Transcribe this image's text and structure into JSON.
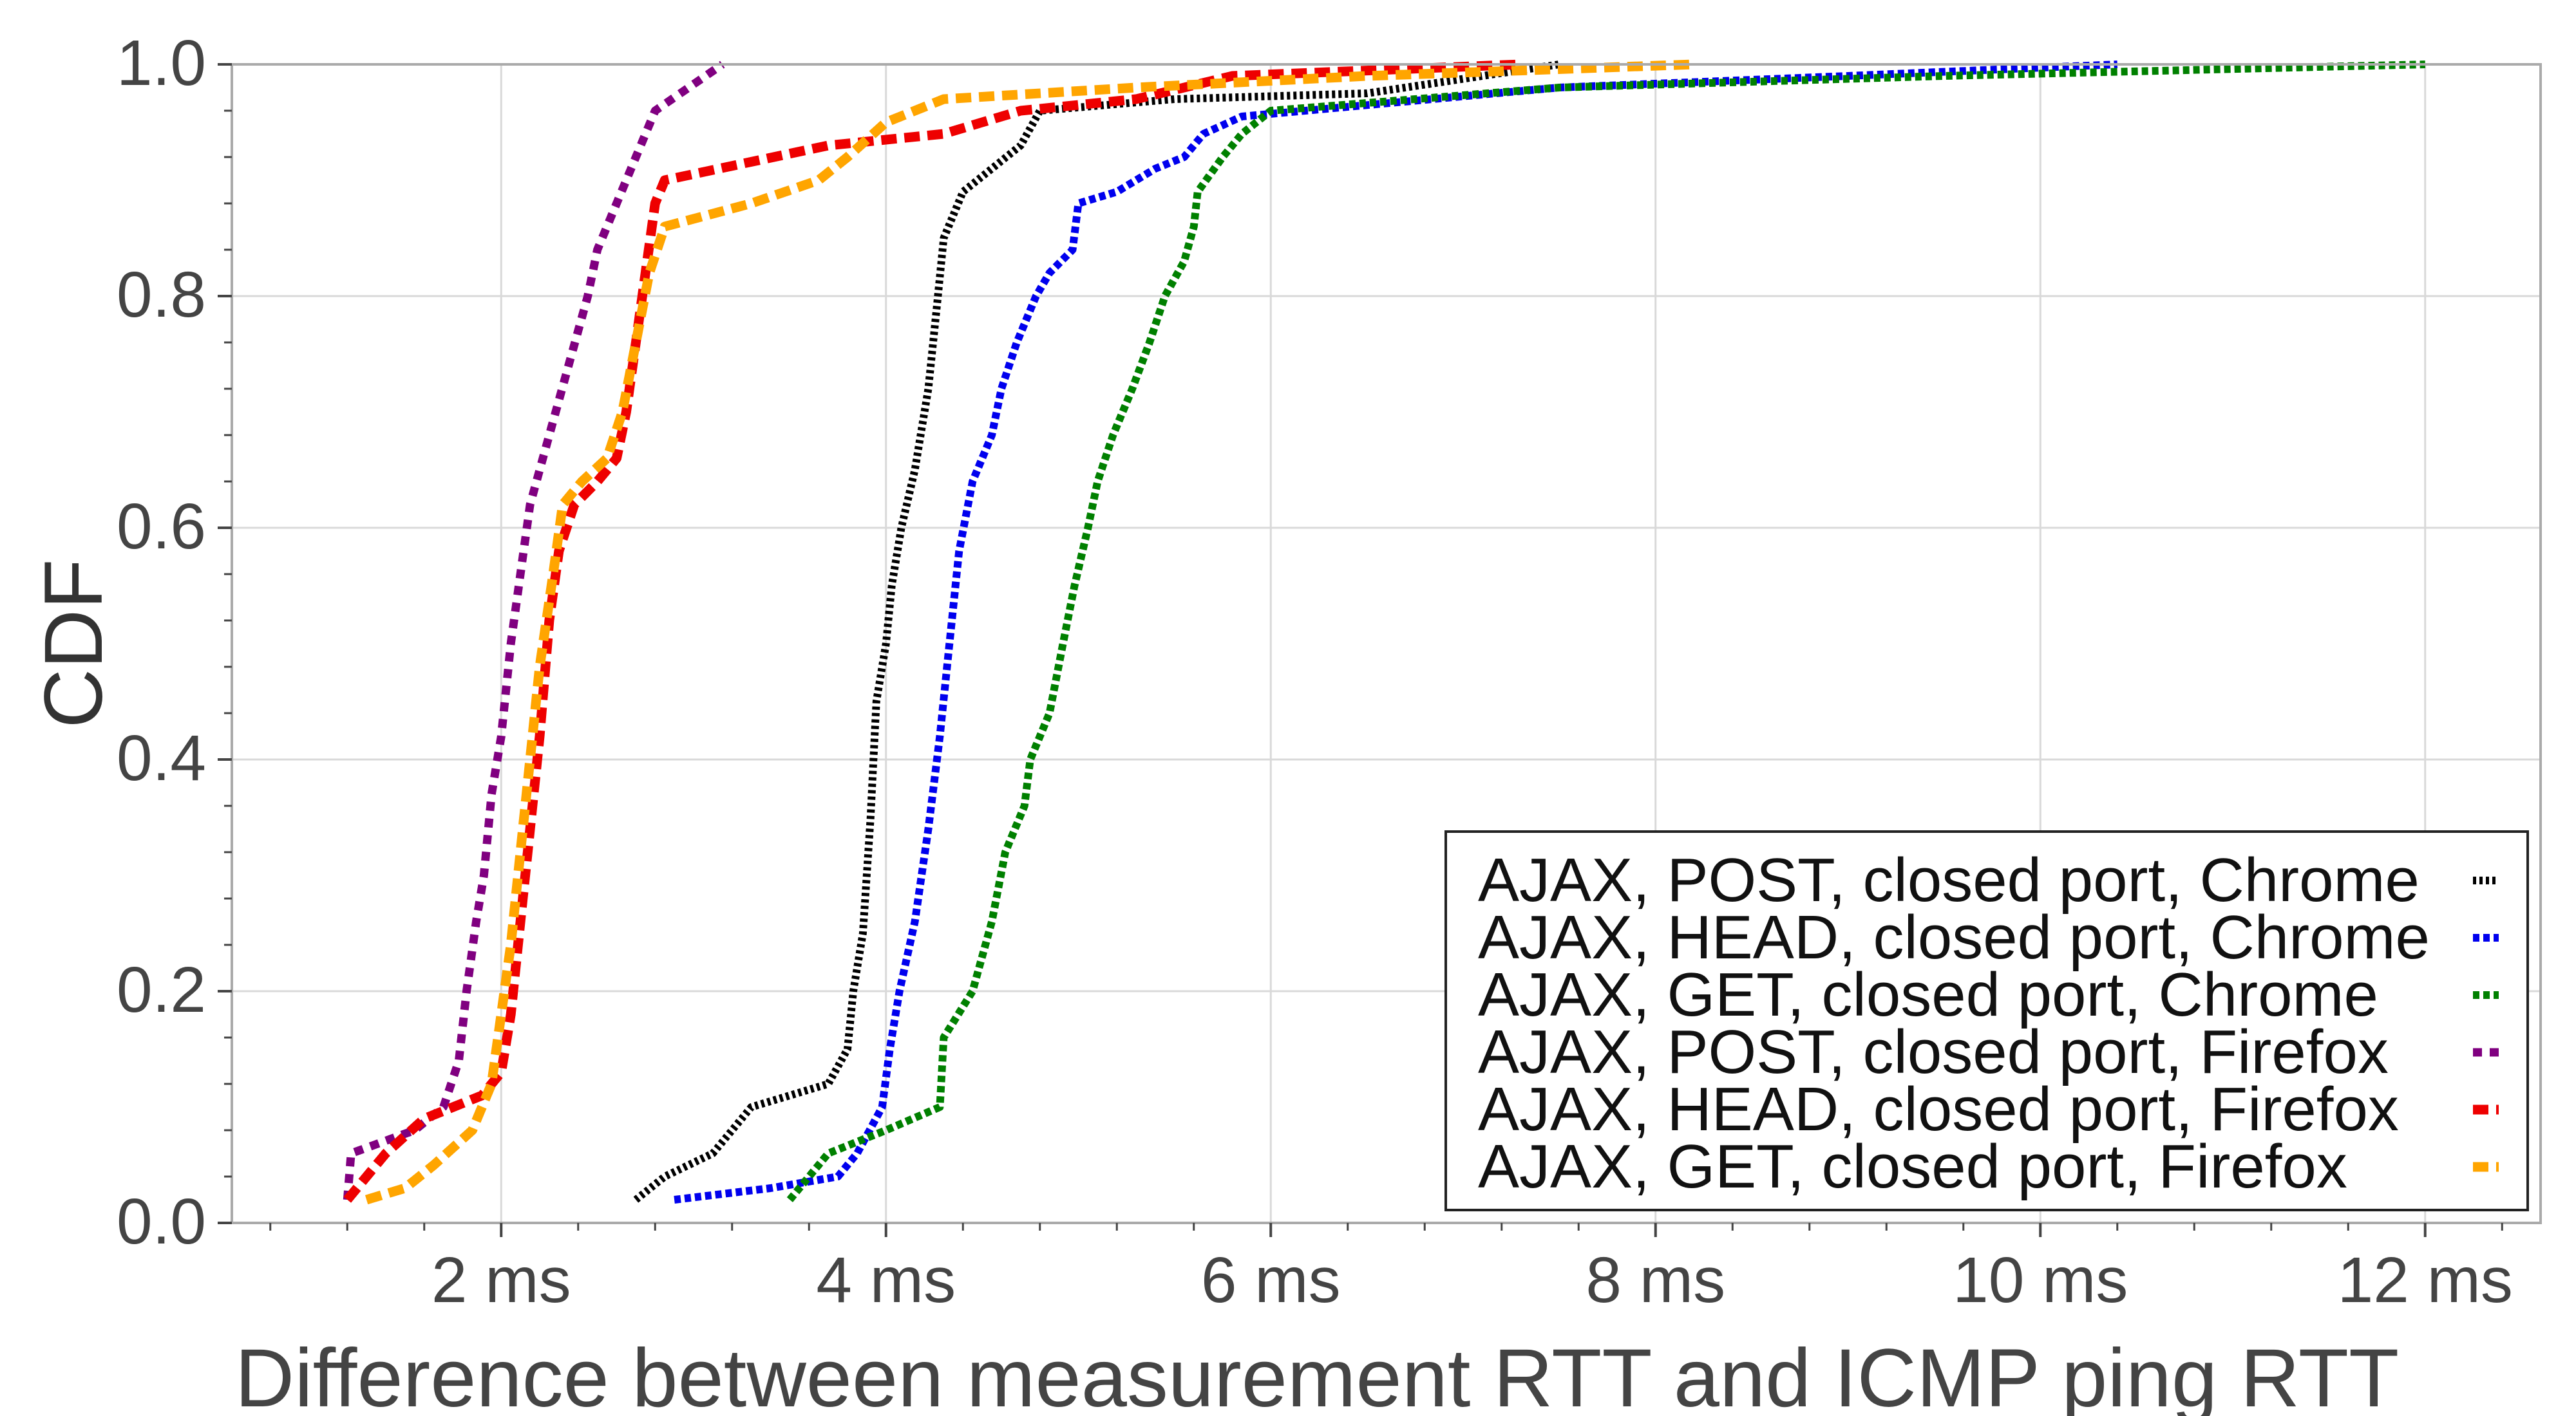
{
  "chart_data": {
    "type": "line",
    "xlabel": "Difference between measurement RTT and ICMP ping RTT",
    "ylabel": "CDF",
    "xlim": [
      0.6,
      12.6
    ],
    "ylim": [
      0.0,
      1.0
    ],
    "x_ticks": [
      2,
      4,
      6,
      8,
      10,
      12
    ],
    "x_tick_labels": [
      "2 ms",
      "4 ms",
      "6 ms",
      "8 ms",
      "10 ms",
      "12 ms"
    ],
    "y_ticks": [
      0.0,
      0.2,
      0.4,
      0.6,
      0.8,
      1.0
    ],
    "y_tick_labels": [
      "0.0",
      "0.2",
      "0.4",
      "0.6",
      "0.8",
      "1.0"
    ],
    "grid": true,
    "legend_position": "bottom-right",
    "series": [
      {
        "name": "AJAX, POST, closed port, Chrome",
        "color": "#000000",
        "style": "dense-dotted",
        "points": [
          [
            2.7,
            0.02
          ],
          [
            2.85,
            0.04
          ],
          [
            3.1,
            0.06
          ],
          [
            3.3,
            0.1
          ],
          [
            3.5,
            0.11
          ],
          [
            3.7,
            0.12
          ],
          [
            3.8,
            0.15
          ],
          [
            3.83,
            0.2
          ],
          [
            3.88,
            0.25
          ],
          [
            3.92,
            0.35
          ],
          [
            3.95,
            0.45
          ],
          [
            4.0,
            0.5
          ],
          [
            4.03,
            0.55
          ],
          [
            4.08,
            0.6
          ],
          [
            4.15,
            0.65
          ],
          [
            4.22,
            0.72
          ],
          [
            4.27,
            0.8
          ],
          [
            4.3,
            0.85
          ],
          [
            4.4,
            0.89
          ],
          [
            4.55,
            0.91
          ],
          [
            4.7,
            0.93
          ],
          [
            4.8,
            0.96
          ],
          [
            5.5,
            0.97
          ],
          [
            6.5,
            0.975
          ],
          [
            7.5,
            1.0
          ]
        ]
      },
      {
        "name": "AJAX, HEAD, closed port, Chrome",
        "color": "#0000ee",
        "style": "dotted",
        "points": [
          [
            2.9,
            0.02
          ],
          [
            3.4,
            0.03
          ],
          [
            3.75,
            0.04
          ],
          [
            3.85,
            0.06
          ],
          [
            3.98,
            0.1
          ],
          [
            4.02,
            0.15
          ],
          [
            4.07,
            0.2
          ],
          [
            4.15,
            0.26
          ],
          [
            4.22,
            0.34
          ],
          [
            4.28,
            0.42
          ],
          [
            4.33,
            0.5
          ],
          [
            4.38,
            0.58
          ],
          [
            4.45,
            0.64
          ],
          [
            4.55,
            0.68
          ],
          [
            4.6,
            0.72
          ],
          [
            4.68,
            0.76
          ],
          [
            4.78,
            0.8
          ],
          [
            4.85,
            0.82
          ],
          [
            4.97,
            0.84
          ],
          [
            5.0,
            0.88
          ],
          [
            5.2,
            0.89
          ],
          [
            5.4,
            0.91
          ],
          [
            5.55,
            0.92
          ],
          [
            5.65,
            0.94
          ],
          [
            5.85,
            0.955
          ],
          [
            7.5,
            0.98
          ],
          [
            9.0,
            0.99
          ],
          [
            10.4,
            1.0
          ]
        ]
      },
      {
        "name": "AJAX, GET, closed port, Chrome",
        "color": "#008000",
        "style": "dotted",
        "points": [
          [
            3.5,
            0.02
          ],
          [
            3.7,
            0.06
          ],
          [
            4.0,
            0.08
          ],
          [
            4.28,
            0.1
          ],
          [
            4.3,
            0.16
          ],
          [
            4.45,
            0.2
          ],
          [
            4.55,
            0.26
          ],
          [
            4.62,
            0.32
          ],
          [
            4.72,
            0.36
          ],
          [
            4.75,
            0.4
          ],
          [
            4.85,
            0.44
          ],
          [
            4.92,
            0.5
          ],
          [
            4.98,
            0.55
          ],
          [
            5.05,
            0.6
          ],
          [
            5.1,
            0.64
          ],
          [
            5.18,
            0.68
          ],
          [
            5.28,
            0.72
          ],
          [
            5.37,
            0.76
          ],
          [
            5.45,
            0.8
          ],
          [
            5.55,
            0.83
          ],
          [
            5.6,
            0.86
          ],
          [
            5.62,
            0.89
          ],
          [
            5.75,
            0.92
          ],
          [
            5.85,
            0.94
          ],
          [
            6.0,
            0.96
          ],
          [
            7.5,
            0.98
          ],
          [
            9.5,
            0.99
          ],
          [
            12.0,
            1.0
          ]
        ]
      },
      {
        "name": "AJAX, POST, closed port, Firefox",
        "color": "#800080",
        "style": "sparse-dotted",
        "points": [
          [
            1.2,
            0.02
          ],
          [
            1.22,
            0.06
          ],
          [
            1.55,
            0.08
          ],
          [
            1.7,
            0.1
          ],
          [
            1.78,
            0.14
          ],
          [
            1.82,
            0.2
          ],
          [
            1.87,
            0.26
          ],
          [
            1.91,
            0.3
          ],
          [
            1.95,
            0.37
          ],
          [
            2.0,
            0.42
          ],
          [
            2.05,
            0.5
          ],
          [
            2.1,
            0.56
          ],
          [
            2.15,
            0.62
          ],
          [
            2.25,
            0.68
          ],
          [
            2.35,
            0.74
          ],
          [
            2.45,
            0.8
          ],
          [
            2.5,
            0.84
          ],
          [
            2.6,
            0.88
          ],
          [
            2.7,
            0.92
          ],
          [
            2.8,
            0.96
          ],
          [
            3.15,
            1.0
          ]
        ]
      },
      {
        "name": "AJAX, HEAD, closed port, Firefox",
        "color": "#ee0000",
        "style": "dashed",
        "points": [
          [
            1.2,
            0.02
          ],
          [
            1.4,
            0.06
          ],
          [
            1.6,
            0.09
          ],
          [
            1.9,
            0.11
          ],
          [
            2.0,
            0.13
          ],
          [
            2.05,
            0.18
          ],
          [
            2.1,
            0.26
          ],
          [
            2.15,
            0.34
          ],
          [
            2.2,
            0.42
          ],
          [
            2.25,
            0.52
          ],
          [
            2.3,
            0.58
          ],
          [
            2.38,
            0.62
          ],
          [
            2.5,
            0.64
          ],
          [
            2.6,
            0.66
          ],
          [
            2.65,
            0.7
          ],
          [
            2.7,
            0.76
          ],
          [
            2.75,
            0.82
          ],
          [
            2.8,
            0.88
          ],
          [
            2.85,
            0.9
          ],
          [
            3.7,
            0.93
          ],
          [
            4.3,
            0.94
          ],
          [
            4.7,
            0.96
          ],
          [
            5.3,
            0.97
          ],
          [
            5.8,
            0.99
          ],
          [
            7.3,
            1.0
          ]
        ]
      },
      {
        "name": "AJAX, GET, closed port, Firefox",
        "color": "#ffa500",
        "style": "dashed",
        "points": [
          [
            1.3,
            0.02
          ],
          [
            1.5,
            0.03
          ],
          [
            1.65,
            0.05
          ],
          [
            1.85,
            0.08
          ],
          [
            1.95,
            0.12
          ],
          [
            2.0,
            0.18
          ],
          [
            2.05,
            0.24
          ],
          [
            2.1,
            0.32
          ],
          [
            2.15,
            0.4
          ],
          [
            2.2,
            0.48
          ],
          [
            2.27,
            0.56
          ],
          [
            2.32,
            0.62
          ],
          [
            2.42,
            0.64
          ],
          [
            2.55,
            0.66
          ],
          [
            2.63,
            0.7
          ],
          [
            2.7,
            0.76
          ],
          [
            2.77,
            0.82
          ],
          [
            2.85,
            0.86
          ],
          [
            3.3,
            0.88
          ],
          [
            3.65,
            0.9
          ],
          [
            3.8,
            0.92
          ],
          [
            4.0,
            0.95
          ],
          [
            4.3,
            0.97
          ],
          [
            5.3,
            0.98
          ],
          [
            6.5,
            0.99
          ],
          [
            8.2,
            1.0
          ]
        ]
      }
    ]
  }
}
